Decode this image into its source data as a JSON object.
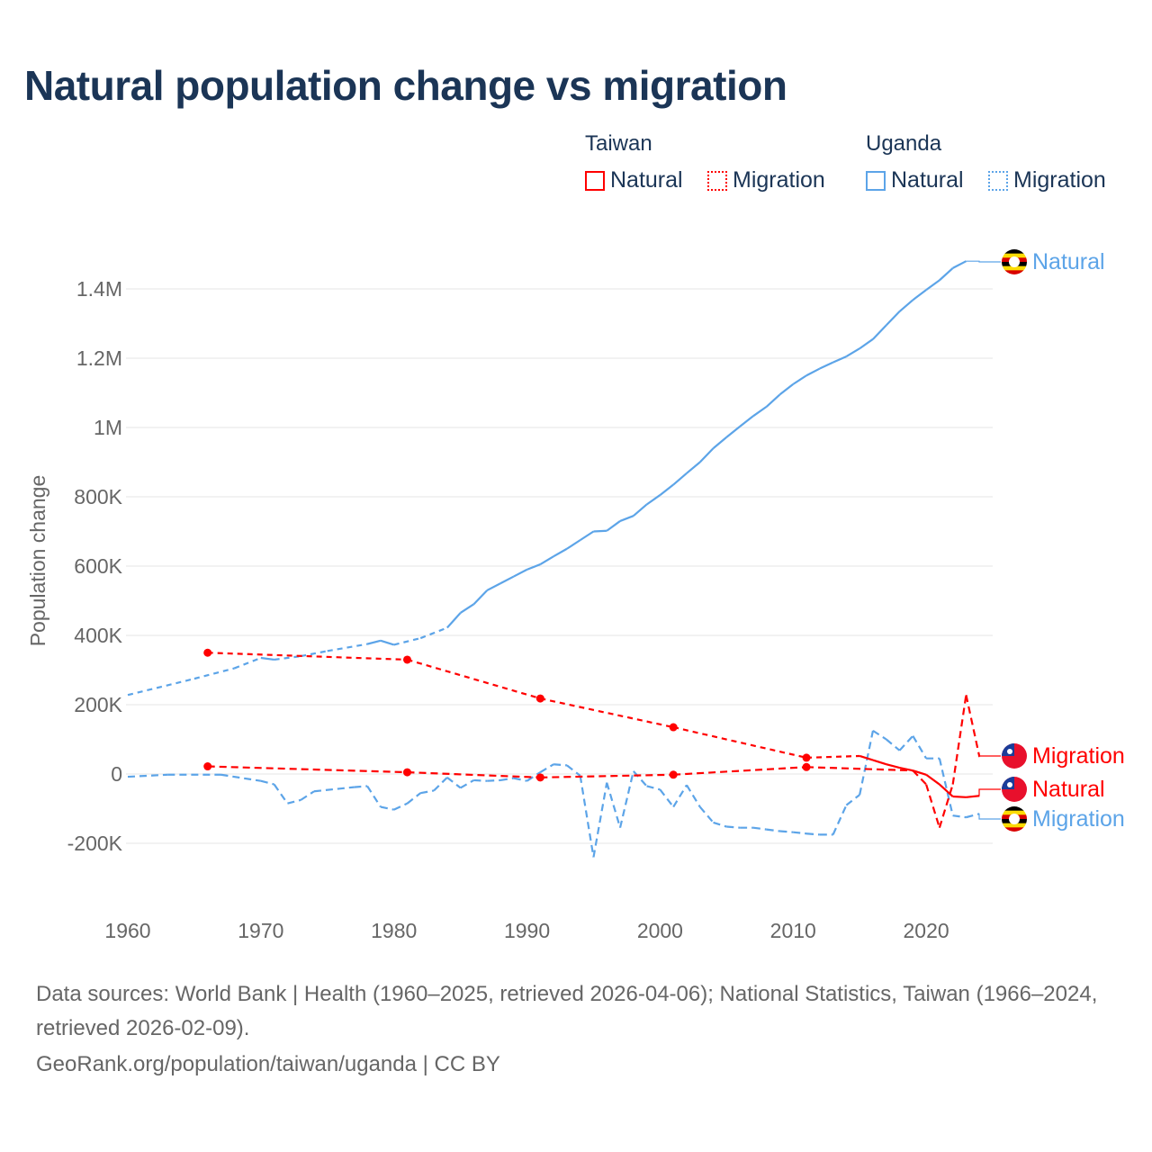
{
  "title": "Natural population change vs migration",
  "legend": {
    "groups": [
      {
        "name": "Taiwan",
        "items": [
          "Natural",
          "Migration"
        ],
        "color": "#ff0000"
      },
      {
        "name": "Uganda",
        "items": [
          "Natural",
          "Migration"
        ],
        "color": "#5ca4e8"
      }
    ]
  },
  "footer": {
    "sources": "Data sources: World Bank | Health (1960–2025, retrieved 2026-04-06); National Statistics, Taiwan (1966–2024, retrieved 2026-02-09).",
    "credit": "GeoRank.org/population/taiwan/uganda | CC BY"
  },
  "chart_data": {
    "type": "line",
    "title": "Natural population change vs migration",
    "xlabel": "",
    "ylabel": "Population change",
    "xlim": [
      1960,
      2025
    ],
    "ylim": [
      -300000,
      1500000
    ],
    "xticks": [
      1960,
      1970,
      1980,
      1990,
      2000,
      2010,
      2020
    ],
    "xtick_labels": [
      "1960",
      "1970",
      "1980",
      "1990",
      "2000",
      "2010",
      "2020"
    ],
    "yticks": [
      -200000,
      0,
      200000,
      400000,
      600000,
      800000,
      1000000,
      1200000,
      1400000
    ],
    "ytick_labels": [
      "-200K",
      "0",
      "200K",
      "400K",
      "600K",
      "800K",
      "1M",
      "1.2M",
      "1.4M"
    ],
    "grid": true,
    "series": [
      {
        "name": "Uganda Natural",
        "label": "Natural",
        "country": "Uganda",
        "color": "#5ca4e8",
        "style": "solid",
        "x": [
          1960,
          1965,
          1968,
          1970,
          1971,
          1973,
          1975,
          1978,
          1979,
          1980,
          1982,
          1984,
          1985,
          1986,
          1987,
          1988,
          1989,
          1990,
          1991,
          1992,
          1993,
          1994,
          1995,
          1996,
          1997,
          1998,
          1999,
          2000,
          2001,
          2002,
          2003,
          2004,
          2005,
          2006,
          2007,
          2008,
          2009,
          2010,
          2011,
          2012,
          2013,
          2014,
          2015,
          2016,
          2017,
          2018,
          2019,
          2020,
          2021,
          2022,
          2023
        ],
        "y": [
          228000,
          275000,
          305000,
          335000,
          330000,
          340000,
          355000,
          375000,
          385000,
          373000,
          392000,
          422000,
          465000,
          490000,
          530000,
          550000,
          570000,
          590000,
          605000,
          628000,
          650000,
          675000,
          700000,
          702000,
          730000,
          745000,
          778000,
          805000,
          835000,
          868000,
          900000,
          940000,
          972000,
          1003000,
          1033000,
          1060000,
          1095000,
          1125000,
          1150000,
          1170000,
          1188000,
          1205000,
          1228000,
          1255000,
          1295000,
          1335000,
          1368000,
          1397000,
          1425000,
          1460000,
          1480000
        ]
      },
      {
        "name": "Uganda Migration",
        "label": "Migration",
        "country": "Uganda",
        "color": "#5ca4e8",
        "style": "dashed",
        "x": [
          1960,
          1963,
          1967,
          1970,
          1971,
          1972,
          1973,
          1974,
          1977,
          1978,
          1979,
          1980,
          1981,
          1982,
          1983,
          1984,
          1985,
          1986,
          1987,
          1988,
          1989,
          1990,
          1991,
          1992,
          1993,
          1994,
          1995,
          1996,
          1997,
          1998,
          1999,
          2000,
          2001,
          2002,
          2003,
          2004,
          2005,
          2006,
          2007,
          2008,
          2009,
          2010,
          2011,
          2012,
          2013,
          2014,
          2015,
          2016,
          2017,
          2018,
          2019,
          2020,
          2021,
          2022,
          2023,
          2024
        ],
        "y": [
          -8000,
          -2000,
          -2000,
          -20000,
          -30000,
          -85000,
          -75000,
          -50000,
          -38000,
          -35000,
          -95000,
          -103000,
          -85000,
          -55000,
          -48000,
          -10000,
          -40000,
          -18000,
          -20000,
          -18000,
          -12000,
          -20000,
          5000,
          28000,
          25000,
          -5000,
          -240000,
          -25000,
          -155000,
          8000,
          -35000,
          -45000,
          -95000,
          -32000,
          -95000,
          -140000,
          -152000,
          -155000,
          -155000,
          -160000,
          -165000,
          -168000,
          -172000,
          -175000,
          -175000,
          -90000,
          -60000,
          125000,
          100000,
          68000,
          110000,
          45000,
          45000,
          -120000,
          -125000,
          -115000
        ]
      },
      {
        "name": "Taiwan Natural",
        "label": "Natural",
        "country": "Taiwan",
        "color": "#ff0000",
        "style": "solid",
        "x": [
          1966,
          1981,
          1991,
          2001,
          2011,
          2015,
          2016,
          2017,
          2018,
          2019,
          2020,
          2021,
          2022,
          2023,
          2024
        ],
        "y": [
          350000,
          330000,
          218000,
          135000,
          47000,
          52000,
          40000,
          28000,
          18000,
          10000,
          -2000,
          -30000,
          -65000,
          -67000,
          -63000
        ]
      },
      {
        "name": "Taiwan Migration",
        "label": "Migration",
        "country": "Taiwan",
        "color": "#ff0000",
        "style": "dashed",
        "x": [
          1966,
          1981,
          1991,
          2001,
          2011,
          2019,
          2020,
          2021,
          2022,
          2023,
          2024
        ],
        "y": [
          22000,
          5000,
          -10000,
          -2000,
          20000,
          10000,
          -30000,
          -155000,
          -30000,
          228000,
          50000
        ]
      }
    ]
  }
}
